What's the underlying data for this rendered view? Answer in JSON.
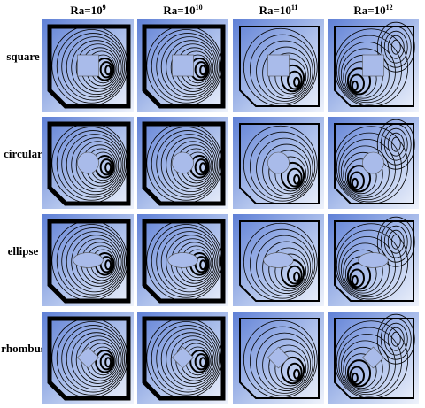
{
  "columns": [
    {
      "base": "Ra=10",
      "exp": "9"
    },
    {
      "base": "Ra=10",
      "exp": "10"
    },
    {
      "base": "Ra=10",
      "exp": "11"
    },
    {
      "base": "Ra=10",
      "exp": "12"
    }
  ],
  "rows": [
    "square",
    "circular",
    "ellipse",
    "rhombus"
  ]
}
